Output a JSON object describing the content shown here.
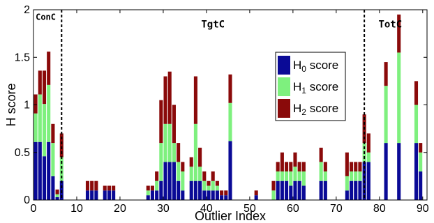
{
  "chart_data": {
    "type": "bar",
    "stacked": true,
    "xlabel": "Outlier Index",
    "ylabel": "H score",
    "xlim": [
      0,
      91
    ],
    "ylim": [
      0,
      2
    ],
    "xticks": [
      0,
      10,
      20,
      30,
      40,
      50,
      60,
      70,
      80,
      90
    ],
    "yticks": [
      0,
      0.5,
      1,
      1.5,
      2
    ],
    "ytick_labels": [
      "0",
      "0.5",
      "1",
      "1.5",
      "2"
    ],
    "region_labels": [
      {
        "text": "ConC",
        "x": 0.5,
        "y": 1.98
      },
      {
        "text": "TgtC",
        "x": 41.5,
        "y": 1.9
      },
      {
        "text": "TotC",
        "x": 82.5,
        "y": 1.9
      }
    ],
    "dividers": [
      6.5,
      76.5
    ],
    "legend": {
      "placement": "top-right-center"
    },
    "series": [
      {
        "name": "score",
        "legend_subscript": "0",
        "color": "#0a0a96",
        "values": [
          0.61,
          0.61,
          0.46,
          0.61,
          0.25,
          0.03,
          0.2,
          0,
          0,
          0,
          0,
          0,
          0.1,
          0.1,
          0.1,
          0,
          0.1,
          0.1,
          0.1,
          0,
          0,
          0,
          0,
          0,
          0,
          0,
          0.05,
          0.1,
          0.1,
          0.2,
          0.4,
          0.4,
          0.4,
          0.2,
          0.1,
          0,
          0.2,
          0.2,
          0.2,
          0.1,
          0.1,
          0.1,
          0.1,
          0.05,
          0.05,
          0.62,
          0,
          0,
          0,
          0,
          0,
          0.05,
          0,
          0,
          0,
          0,
          0.2,
          0.2,
          0.2,
          0.15,
          0.2,
          0.2,
          0.15,
          0,
          0,
          0,
          0.2,
          0.2,
          0,
          0,
          0,
          0,
          0.1,
          0.2,
          0.2,
          0.2,
          0.4,
          0.4,
          0,
          0,
          0,
          0.6,
          0,
          0,
          0.6,
          0,
          0,
          0,
          0.6,
          0.3
        ]
      },
      {
        "name": "score",
        "legend_subscript": "1",
        "color": "#7ef07e",
        "values": [
          0.3,
          0.5,
          0.55,
          0.6,
          0.35,
          0.03,
          0.25,
          0,
          0,
          0,
          0,
          0,
          0,
          0,
          0,
          0,
          0,
          0,
          0,
          0,
          0,
          0,
          0,
          0,
          0,
          0,
          0.05,
          0,
          0.1,
          0.4,
          0.4,
          0.4,
          0.2,
          0.2,
          0.2,
          0,
          0.15,
          0.6,
          0.15,
          0.1,
          0.05,
          0.1,
          0.05,
          0,
          0,
          0.4,
          0,
          0,
          0,
          0,
          0,
          0,
          0,
          0,
          0,
          0.1,
          0.1,
          0.1,
          0.1,
          0.15,
          0.15,
          0.1,
          0.15,
          0,
          0,
          0,
          0.2,
          0.1,
          0,
          0,
          0,
          0,
          0.15,
          0.1,
          0.1,
          0.1,
          0.2,
          0.1,
          0,
          0,
          0,
          0.6,
          0,
          0,
          0.95,
          0,
          0,
          0,
          0.4,
          0.2
        ]
      },
      {
        "name": "score",
        "legend_subscript": "2",
        "color": "#8a0a0a",
        "values": [
          0.2,
          0.25,
          0.35,
          0.35,
          0.2,
          0.05,
          0.25,
          0,
          0,
          0,
          0,
          0,
          0.1,
          0.1,
          0.1,
          0,
          0.05,
          0.05,
          0.05,
          0,
          0,
          0,
          0,
          0,
          0,
          0,
          0.05,
          0.05,
          0.1,
          0.45,
          0.5,
          0.55,
          0.4,
          0.2,
          0.1,
          0,
          0.1,
          0.5,
          0.2,
          0.1,
          0.05,
          0.1,
          0.05,
          0.05,
          0.05,
          0.3,
          0,
          0,
          0,
          0,
          0,
          0.05,
          0,
          0,
          0,
          0.1,
          0.1,
          0.2,
          0.1,
          0.1,
          0.15,
          0.1,
          0.1,
          0,
          0,
          0,
          0.15,
          0.1,
          0,
          0,
          0,
          0,
          0.25,
          0.1,
          0.1,
          0.1,
          0.3,
          0.2,
          0,
          0,
          0,
          0.25,
          0,
          0,
          0.4,
          0,
          0,
          0,
          0.25,
          0.1
        ]
      }
    ]
  }
}
